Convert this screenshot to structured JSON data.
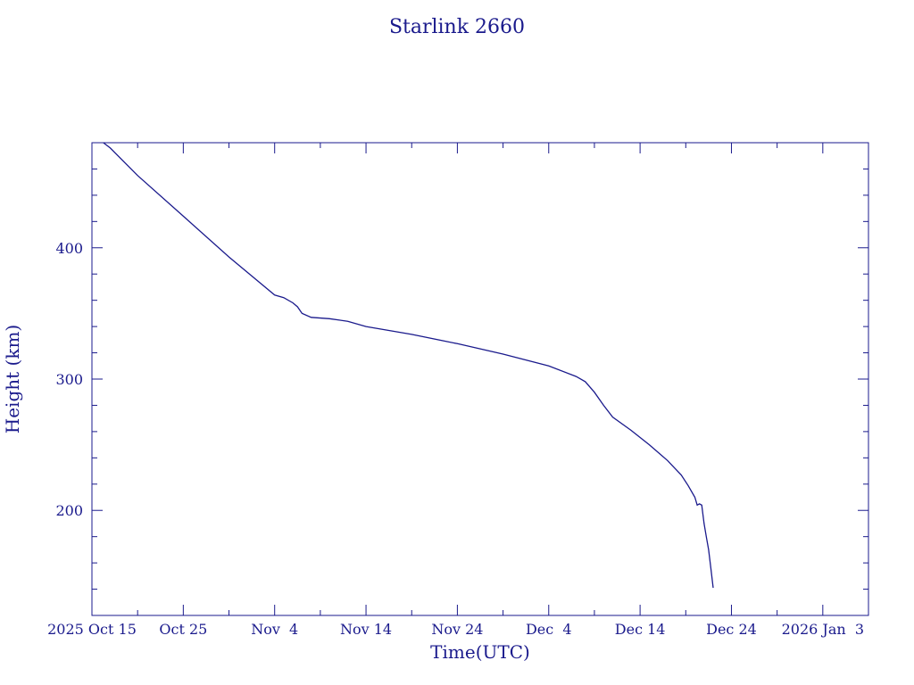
{
  "chart_data": {
    "type": "line",
    "title": "Starlink 2660",
    "xlabel": "Time(UTC)",
    "ylabel": "Height (km)",
    "x_is_date": true,
    "xlim": [
      "2025-10-15",
      "2026-01-08"
    ],
    "ylim": [
      120,
      480
    ],
    "x_ticks": [
      {
        "date": "2025-10-15",
        "label": "2025 Oct 15"
      },
      {
        "date": "2025-10-25",
        "label": "Oct 25"
      },
      {
        "date": "2025-11-04",
        "label": "Nov  4"
      },
      {
        "date": "2025-11-14",
        "label": "Nov 14"
      },
      {
        "date": "2025-11-24",
        "label": "Nov 24"
      },
      {
        "date": "2025-12-04",
        "label": "Dec  4"
      },
      {
        "date": "2025-12-14",
        "label": "Dec 14"
      },
      {
        "date": "2025-12-24",
        "label": "Dec 24"
      },
      {
        "date": "2026-01-03",
        "label": "2026 Jan  3"
      }
    ],
    "y_ticks": [
      {
        "value": 200,
        "label": "200"
      },
      {
        "value": 300,
        "label": "300"
      },
      {
        "value": 400,
        "label": "400"
      }
    ],
    "series": [
      {
        "color": "#1a1a8c",
        "points": [
          [
            "2025-10-16T06:00",
            480
          ],
          [
            "2025-10-17T00:00",
            476
          ],
          [
            "2025-10-20T00:00",
            455
          ],
          [
            "2025-10-25T00:00",
            424
          ],
          [
            "2025-10-30T00:00",
            393
          ],
          [
            "2025-11-04T00:00",
            364
          ],
          [
            "2025-11-05T00:00",
            362
          ],
          [
            "2025-11-06T00:00",
            358
          ],
          [
            "2025-11-06T12:00",
            355
          ],
          [
            "2025-11-07T00:00",
            350
          ],
          [
            "2025-11-08T00:00",
            347
          ],
          [
            "2025-11-10T00:00",
            346
          ],
          [
            "2025-11-12T00:00",
            344
          ],
          [
            "2025-11-14T00:00",
            340
          ],
          [
            "2025-11-19T00:00",
            334
          ],
          [
            "2025-11-24T00:00",
            327
          ],
          [
            "2025-11-29T00:00",
            319
          ],
          [
            "2025-12-04T00:00",
            310
          ],
          [
            "2025-12-07T00:00",
            302
          ],
          [
            "2025-12-08T00:00",
            298
          ],
          [
            "2025-12-09T00:00",
            290
          ],
          [
            "2025-12-10T00:00",
            280
          ],
          [
            "2025-12-11T00:00",
            271
          ],
          [
            "2025-12-13T00:00",
            261
          ],
          [
            "2025-12-15T00:00",
            250
          ],
          [
            "2025-12-17T00:00",
            238
          ],
          [
            "2025-12-18T12:00",
            227
          ],
          [
            "2025-12-19T06:00",
            219
          ],
          [
            "2025-12-20T00:00",
            210
          ],
          [
            "2025-12-20T06:00",
            204
          ],
          [
            "2025-12-20T12:00",
            205
          ],
          [
            "2025-12-20T18:00",
            204
          ],
          [
            "2025-12-21T00:00",
            190
          ],
          [
            "2025-12-21T06:00",
            180
          ],
          [
            "2025-12-21T12:00",
            170
          ],
          [
            "2025-12-21T18:00",
            156
          ],
          [
            "2025-12-22T00:00",
            141
          ]
        ]
      }
    ]
  }
}
